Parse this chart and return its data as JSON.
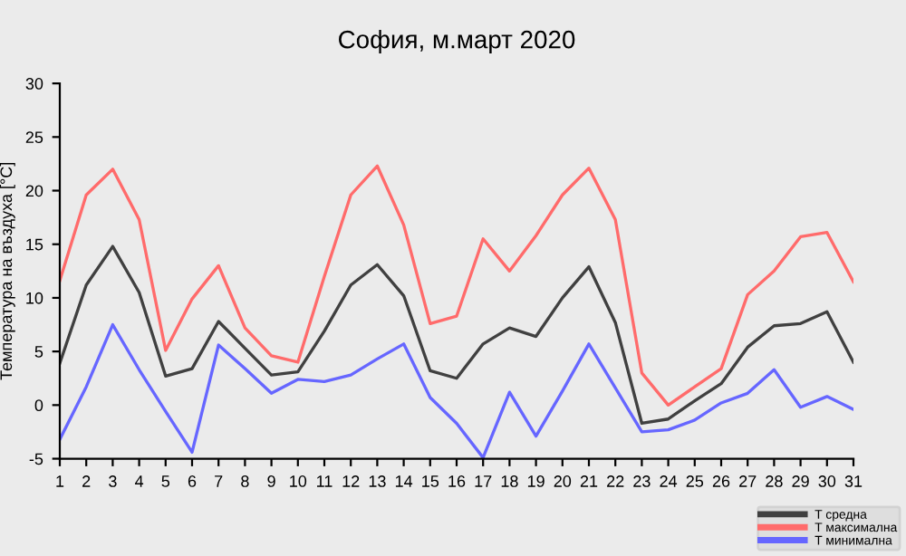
{
  "chart_data": {
    "type": "line",
    "title": "София, м.март 2020",
    "ylabel": "Температура на въздуха [°C]",
    "x": [
      1,
      2,
      3,
      4,
      5,
      6,
      7,
      8,
      9,
      10,
      11,
      12,
      13,
      14,
      15,
      16,
      17,
      18,
      19,
      20,
      21,
      22,
      23,
      24,
      25,
      26,
      27,
      28,
      29,
      30,
      31
    ],
    "series": [
      {
        "name": "T средна",
        "color": "#404040",
        "values": [
          3.9,
          11.2,
          14.8,
          10.5,
          2.7,
          3.4,
          7.8,
          5.3,
          2.8,
          3.1,
          6.9,
          11.2,
          13.1,
          10.2,
          3.2,
          2.5,
          5.7,
          7.2,
          6.4,
          10.0,
          12.9,
          7.7,
          -1.7,
          -1.3,
          0.4,
          2.0,
          5.4,
          7.4,
          7.6,
          8.7,
          4.0
        ]
      },
      {
        "name": "T максимална",
        "color": "#ff6b6b",
        "values": [
          11.6,
          19.6,
          22.0,
          17.3,
          5.1,
          9.9,
          13.0,
          7.2,
          4.6,
          4.0,
          12.0,
          19.6,
          22.3,
          16.8,
          7.6,
          8.3,
          15.5,
          12.5,
          15.8,
          19.6,
          22.1,
          17.3,
          3.0,
          0.0,
          1.7,
          3.4,
          10.3,
          12.5,
          15.7,
          16.1,
          11.5
        ]
      },
      {
        "name": "T минимална",
        "color": "#6666ff",
        "values": [
          -3.2,
          1.7,
          7.5,
          3.3,
          -0.6,
          -4.4,
          5.6,
          3.4,
          1.1,
          2.4,
          2.2,
          2.8,
          4.3,
          5.7,
          0.7,
          -1.7,
          -4.9,
          1.2,
          -2.9,
          1.3,
          5.7,
          1.6,
          -2.5,
          -2.3,
          -1.4,
          0.2,
          1.1,
          3.3,
          -0.2,
          0.8,
          -0.4
        ]
      }
    ],
    "xlim": [
      1,
      31
    ],
    "xticks": [
      1,
      2,
      3,
      4,
      5,
      6,
      7,
      8,
      9,
      10,
      11,
      12,
      13,
      14,
      15,
      16,
      17,
      18,
      19,
      20,
      21,
      22,
      23,
      24,
      25,
      26,
      27,
      28,
      29,
      30,
      31
    ],
    "ylim": [
      -5,
      30
    ],
    "yticks": [
      -5,
      0,
      5,
      10,
      15,
      20,
      25,
      30
    ],
    "grid": false,
    "legend": "bottom right",
    "marker": "none",
    "line_style": "solid"
  }
}
